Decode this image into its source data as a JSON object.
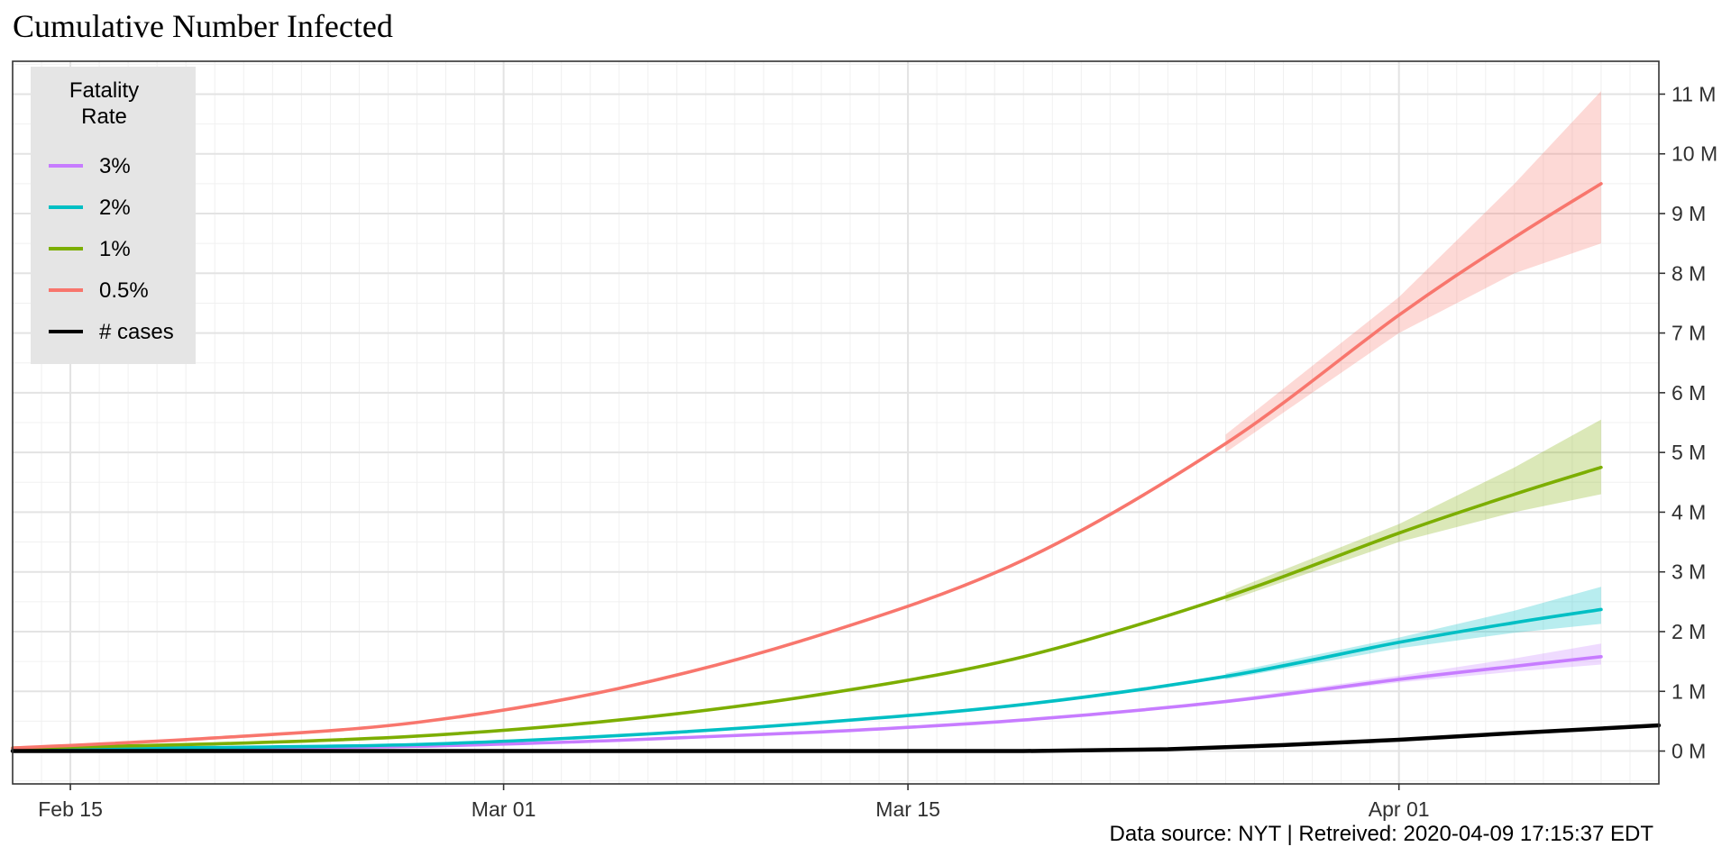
{
  "chart_data": {
    "type": "line",
    "title": "Cumulative Number Infected",
    "caption": "Data source: NYT | Retreived: 2020-04-09 17:15:37 EDT",
    "xlabel": "",
    "ylabel": "",
    "x_ticks": [
      {
        "date": "2020-02-15",
        "label": "Feb 15"
      },
      {
        "date": "2020-03-01",
        "label": "Mar 01"
      },
      {
        "date": "2020-03-15",
        "label": "Mar 15"
      },
      {
        "date": "2020-04-01",
        "label": "Apr 01"
      }
    ],
    "xlim": [
      "2020-02-13",
      "2020-04-10"
    ],
    "ylim": [
      -0.55,
      11.55
    ],
    "y_unit": "millions",
    "y_ticks": [
      {
        "value": 0,
        "label": "0 M"
      },
      {
        "value": 1,
        "label": "1 M"
      },
      {
        "value": 2,
        "label": "2 M"
      },
      {
        "value": 3,
        "label": "3 M"
      },
      {
        "value": 4,
        "label": "4 M"
      },
      {
        "value": 5,
        "label": "5 M"
      },
      {
        "value": 6,
        "label": "6 M"
      },
      {
        "value": 7,
        "label": "7 M"
      },
      {
        "value": 8,
        "label": "8 M"
      },
      {
        "value": 9,
        "label": "9 M"
      },
      {
        "value": 10,
        "label": "10 M"
      },
      {
        "value": 11,
        "label": "11 M"
      }
    ],
    "y_axis_position": "right",
    "grid": true,
    "legend": {
      "title": "Fatality\nRate",
      "position": "top-left"
    },
    "series": [
      {
        "name": "3%",
        "color": "#C77CFF",
        "x": [
          "2020-02-13",
          "2020-02-20",
          "2020-02-27",
          "2020-03-05",
          "2020-03-12",
          "2020-03-19",
          "2020-03-26",
          "2020-04-01",
          "2020-04-05",
          "2020-04-08"
        ],
        "y": [
          0.04,
          0.05,
          0.08,
          0.18,
          0.32,
          0.52,
          0.83,
          1.2,
          1.42,
          1.58
        ],
        "band": {
          "x": [
            "2020-03-26",
            "2020-04-01",
            "2020-04-05",
            "2020-04-08"
          ],
          "low": [
            0.8,
            1.15,
            1.33,
            1.45
          ],
          "high": [
            0.86,
            1.26,
            1.55,
            1.8
          ]
        }
      },
      {
        "name": "2%",
        "color": "#00BFC4",
        "x": [
          "2020-02-13",
          "2020-02-20",
          "2020-02-27",
          "2020-03-05",
          "2020-03-12",
          "2020-03-19",
          "2020-03-26",
          "2020-04-01",
          "2020-04-05",
          "2020-04-08"
        ],
        "y": [
          0.04,
          0.06,
          0.11,
          0.26,
          0.48,
          0.78,
          1.25,
          1.82,
          2.15,
          2.37
        ],
        "band": {
          "x": [
            "2020-03-26",
            "2020-04-01",
            "2020-04-05",
            "2020-04-08"
          ],
          "low": [
            1.2,
            1.72,
            1.98,
            2.13
          ],
          "high": [
            1.3,
            1.9,
            2.35,
            2.75
          ]
        }
      },
      {
        "name": "1%",
        "color": "#7CAE00",
        "x": [
          "2020-02-13",
          "2020-02-20",
          "2020-02-27",
          "2020-03-05",
          "2020-03-12",
          "2020-03-19",
          "2020-03-26",
          "2020-04-01",
          "2020-04-05",
          "2020-04-08"
        ],
        "y": [
          0.05,
          0.12,
          0.25,
          0.52,
          0.95,
          1.58,
          2.58,
          3.65,
          4.3,
          4.75
        ],
        "band": {
          "x": [
            "2020-03-26",
            "2020-04-01",
            "2020-04-05",
            "2020-04-08"
          ],
          "low": [
            2.5,
            3.5,
            4.0,
            4.3
          ],
          "high": [
            2.65,
            3.8,
            4.75,
            5.55
          ]
        }
      },
      {
        "name": "0.5%",
        "color": "#F8766D",
        "x": [
          "2020-02-13",
          "2020-02-20",
          "2020-02-27",
          "2020-03-05",
          "2020-03-12",
          "2020-03-19",
          "2020-03-26",
          "2020-04-01",
          "2020-04-05",
          "2020-04-08"
        ],
        "y": [
          0.05,
          0.22,
          0.48,
          1.05,
          1.95,
          3.2,
          5.15,
          7.3,
          8.6,
          9.5
        ],
        "band": {
          "x": [
            "2020-03-26",
            "2020-04-01",
            "2020-04-05",
            "2020-04-08"
          ],
          "low": [
            5.0,
            7.0,
            8.0,
            8.5
          ],
          "high": [
            5.3,
            7.6,
            9.5,
            11.05
          ]
        }
      },
      {
        "name": "# cases",
        "color": "#000000",
        "x": [
          "2020-02-13",
          "2020-03-01",
          "2020-03-15",
          "2020-03-19",
          "2020-03-24",
          "2020-03-28",
          "2020-04-01",
          "2020-04-05",
          "2020-04-10"
        ],
        "y": [
          0.0,
          0.0,
          0.0,
          0.0,
          0.03,
          0.1,
          0.19,
          0.3,
          0.43
        ]
      }
    ]
  }
}
